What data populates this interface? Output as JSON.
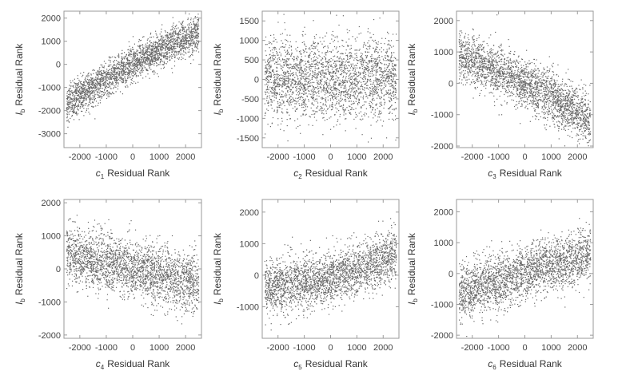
{
  "colors": {
    "points": "#666666",
    "frame": "#9a9a9a",
    "text": "#333333",
    "background": "#ffffff"
  },
  "chart_data": [
    {
      "type": "scatter",
      "title": "",
      "xlabel": {
        "var": "c",
        "sub": "1",
        "rest": "Residual Rank"
      },
      "ylabel": {
        "var": "I",
        "sub": "b",
        "rest": "Residual Rank"
      },
      "xlim": [
        -2600,
        2600
      ],
      "ylim": [
        -3600,
        2300
      ],
      "xticks": [
        -2000,
        -1000,
        0,
        1000,
        2000
      ],
      "xtick_labels": [
        "-2000",
        "-1000",
        "0",
        "1000",
        "2000"
      ],
      "yticks": [
        -3000,
        -2000,
        -1000,
        0,
        1000,
        2000
      ],
      "ytick_labels": [
        "-3000",
        "-2000",
        "-1000",
        "0",
        "1000",
        "2000"
      ],
      "trend": {
        "kind": "curve",
        "a": 0,
        "b": 0.62,
        "c": -2.95e-05,
        "spread": 380
      },
      "n_points": 2600
    },
    {
      "type": "scatter",
      "title": "",
      "xlabel": {
        "var": "c",
        "sub": "2",
        "rest": "Residual Rank"
      },
      "ylabel": {
        "var": "I",
        "sub": "b",
        "rest": "Residual Rank"
      },
      "xlim": [
        -2600,
        2600
      ],
      "ylim": [
        -1750,
        1750
      ],
      "xticks": [
        -2000,
        -1000,
        0,
        1000,
        2000
      ],
      "xtick_labels": [
        "-2000",
        "-1000",
        "0",
        "1000",
        "2000"
      ],
      "yticks": [
        -1500,
        -1000,
        -500,
        0,
        500,
        1000,
        1500
      ],
      "ytick_labels": [
        "-1500",
        "-1000",
        "-500",
        "0",
        "500",
        "1000",
        "1500"
      ],
      "trend": {
        "kind": "curve",
        "a": 0,
        "b": 0,
        "c": 0,
        "spread": 520
      },
      "n_points": 2600
    },
    {
      "type": "scatter",
      "title": "",
      "xlabel": {
        "var": "c",
        "sub": "3",
        "rest": "Residual Rank"
      },
      "ylabel": {
        "var": "I",
        "sub": "b",
        "rest": "Residual Rank"
      },
      "xlim": [
        -2600,
        2600
      ],
      "ylim": [
        -2050,
        2300
      ],
      "xticks": [
        -2000,
        -1000,
        0,
        1000,
        2000
      ],
      "xtick_labels": [
        "-2000",
        "-1000",
        "0",
        "1000",
        "2000"
      ],
      "yticks": [
        -2000,
        -1000,
        0,
        1000,
        2000
      ],
      "ytick_labels": [
        "-2000",
        "-1000",
        "0",
        "1000",
        "2000"
      ],
      "trend": {
        "kind": "curve",
        "a": 0,
        "b": -0.42,
        "c": -3e-05,
        "spread": 400
      },
      "n_points": 2600
    },
    {
      "type": "scatter",
      "title": "",
      "xlabel": {
        "var": "c",
        "sub": "4",
        "rest": "Residual Rank"
      },
      "ylabel": {
        "var": "I",
        "sub": "b",
        "rest": "Residual Rank"
      },
      "xlim": [
        -2600,
        2600
      ],
      "ylim": [
        -2100,
        2100
      ],
      "xticks": [
        -2000,
        -1000,
        0,
        1000,
        2000
      ],
      "xtick_labels": [
        "-2000",
        "-1000",
        "0",
        "1000",
        "2000"
      ],
      "yticks": [
        -2000,
        -1000,
        0,
        1000,
        2000
      ],
      "ytick_labels": [
        "-2000",
        "-1000",
        "0",
        "1000",
        "2000"
      ],
      "trend": {
        "kind": "curve",
        "a": 0,
        "b": -0.18,
        "c": 0,
        "spread": 440
      },
      "n_points": 2600
    },
    {
      "type": "scatter",
      "title": "",
      "xlabel": {
        "var": "c",
        "sub": "5",
        "rest": "Residual Rank"
      },
      "ylabel": {
        "var": "I",
        "sub": "b",
        "rest": "Residual Rank"
      },
      "xlim": [
        -2600,
        2600
      ],
      "ylim": [
        -2000,
        2400
      ],
      "xticks": [
        -2000,
        -1000,
        0,
        1000,
        2000
      ],
      "xtick_labels": [
        "-2000",
        "-1000",
        "0",
        "1000",
        "2000"
      ],
      "yticks": [
        -1000,
        0,
        1000,
        2000
      ],
      "ytick_labels": [
        "-1000",
        "0",
        "1000",
        "2000"
      ],
      "trend": {
        "kind": "curve",
        "a": -80,
        "b": 0.2,
        "c": 4e-05,
        "spread": 420
      },
      "n_points": 2600
    },
    {
      "type": "scatter",
      "title": "",
      "xlabel": {
        "var": "c",
        "sub": "6",
        "rest": "Residual Rank"
      },
      "ylabel": {
        "var": "I",
        "sub": "b",
        "rest": "Residual Rank"
      },
      "xlim": [
        -2600,
        2600
      ],
      "ylim": [
        -2100,
        2400
      ],
      "xticks": [
        -2000,
        -1000,
        0,
        1000,
        2000
      ],
      "xtick_labels": [
        "-2000",
        "-1000",
        "0",
        "1000",
        "2000"
      ],
      "yticks": [
        -2000,
        -1000,
        0,
        1000,
        2000
      ],
      "ytick_labels": [
        "-2000",
        "-1000",
        "0",
        "1000",
        "2000"
      ],
      "trend": {
        "kind": "curve",
        "a": 0,
        "b": 0.25,
        "c": 0,
        "spread": 440
      },
      "n_points": 2600
    }
  ]
}
